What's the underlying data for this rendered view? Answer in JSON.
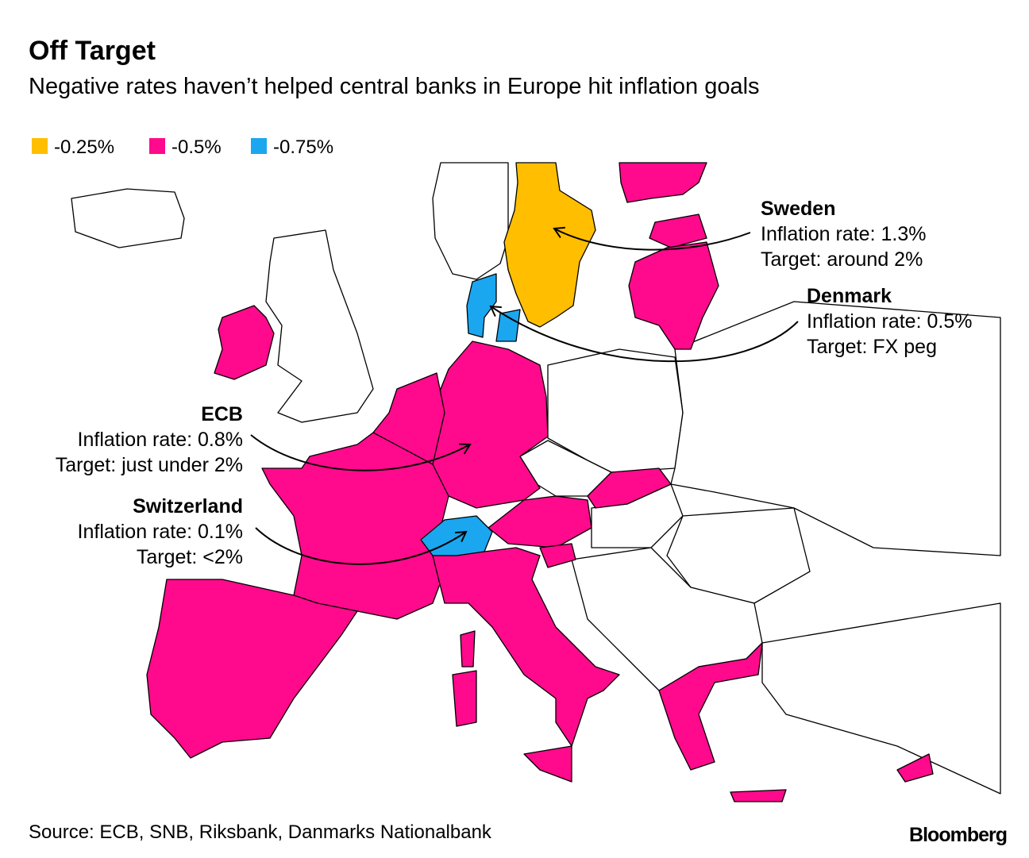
{
  "header": {
    "title": "Off Target",
    "subtitle": "Negative rates haven’t helped central banks in Europe hit inflation goals"
  },
  "legend": {
    "items": [
      {
        "label": "-0.25%",
        "color": "#ffbe00"
      },
      {
        "label": "-0.5%",
        "color": "#ff0a8c"
      },
      {
        "label": "-0.75%",
        "color": "#1aa7f0"
      }
    ]
  },
  "annotations": [
    {
      "title": "Sweden",
      "lines": [
        "Inflation rate: 1.3%",
        "Target: around 2%"
      ]
    },
    {
      "title": "Denmark",
      "lines": [
        "Inflation rate: 0.5%",
        "Target: FX peg"
      ]
    },
    {
      "title": "ECB",
      "lines": [
        "Inflation rate: 0.8%",
        "Target: just under 2%"
      ]
    },
    {
      "title": "Switzerland",
      "lines": [
        "Inflation rate: 0.1%",
        "Target: <2%"
      ]
    }
  ],
  "footer": {
    "source": "Source: ECB, SNB, Riksbank, Danmarks Nationalbank",
    "logo": "Bloomberg"
  }
}
